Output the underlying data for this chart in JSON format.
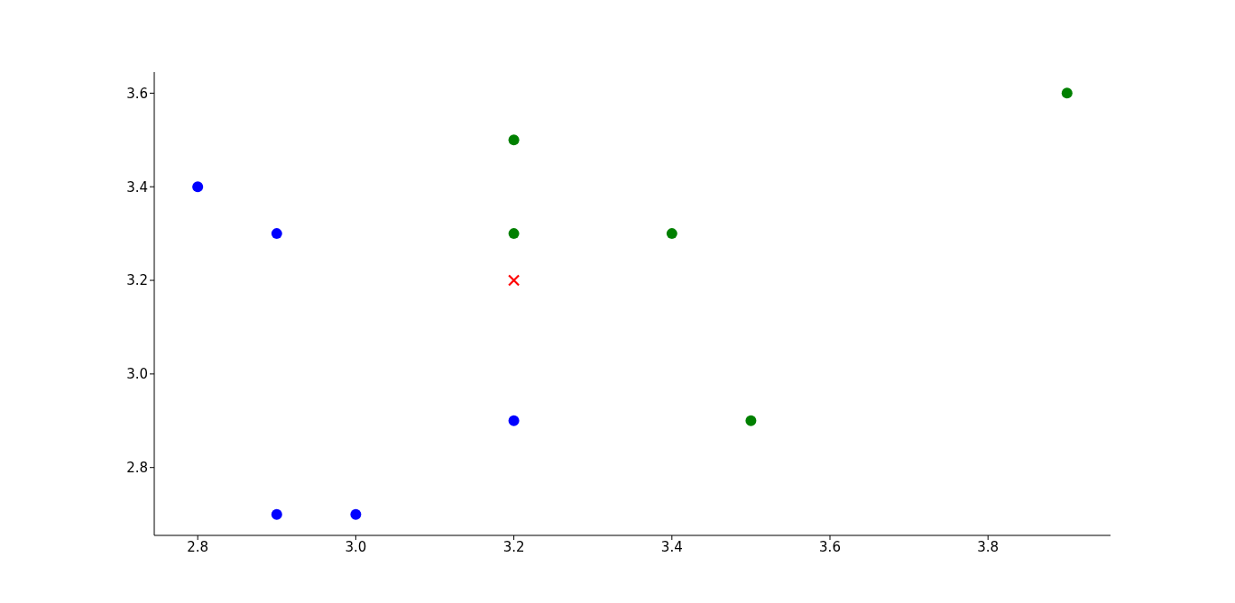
{
  "chart_data": {
    "type": "scatter",
    "series": [
      {
        "color": "#0000ff",
        "marker": "circle",
        "x": [
          2.8,
          2.9,
          2.9,
          3.0,
          3.2
        ],
        "values": [
          3.4,
          3.3,
          2.7,
          2.7,
          2.9
        ]
      },
      {
        "color": "#008000",
        "marker": "circle",
        "x": [
          3.2,
          3.2,
          3.4,
          3.5,
          3.9
        ],
        "values": [
          3.5,
          3.3,
          3.3,
          2.9,
          3.6
        ]
      },
      {
        "color": "#ff0000",
        "marker": "cross",
        "x": [
          3.2
        ],
        "values": [
          3.2
        ]
      }
    ],
    "xlim": [
      2.745,
      3.955
    ],
    "xticks": [
      2.8,
      {
        "value": 3.0,
        "label": "3.0"
      },
      3.2,
      3.4,
      3.6,
      3.8
    ],
    "ylim": [
      2.655,
      3.645
    ],
    "yticks": [
      2.8,
      {
        "value": 3.0,
        "label": "3.0"
      },
      3.2,
      3.4,
      3.6
    ],
    "grid": false,
    "legend": false
  }
}
